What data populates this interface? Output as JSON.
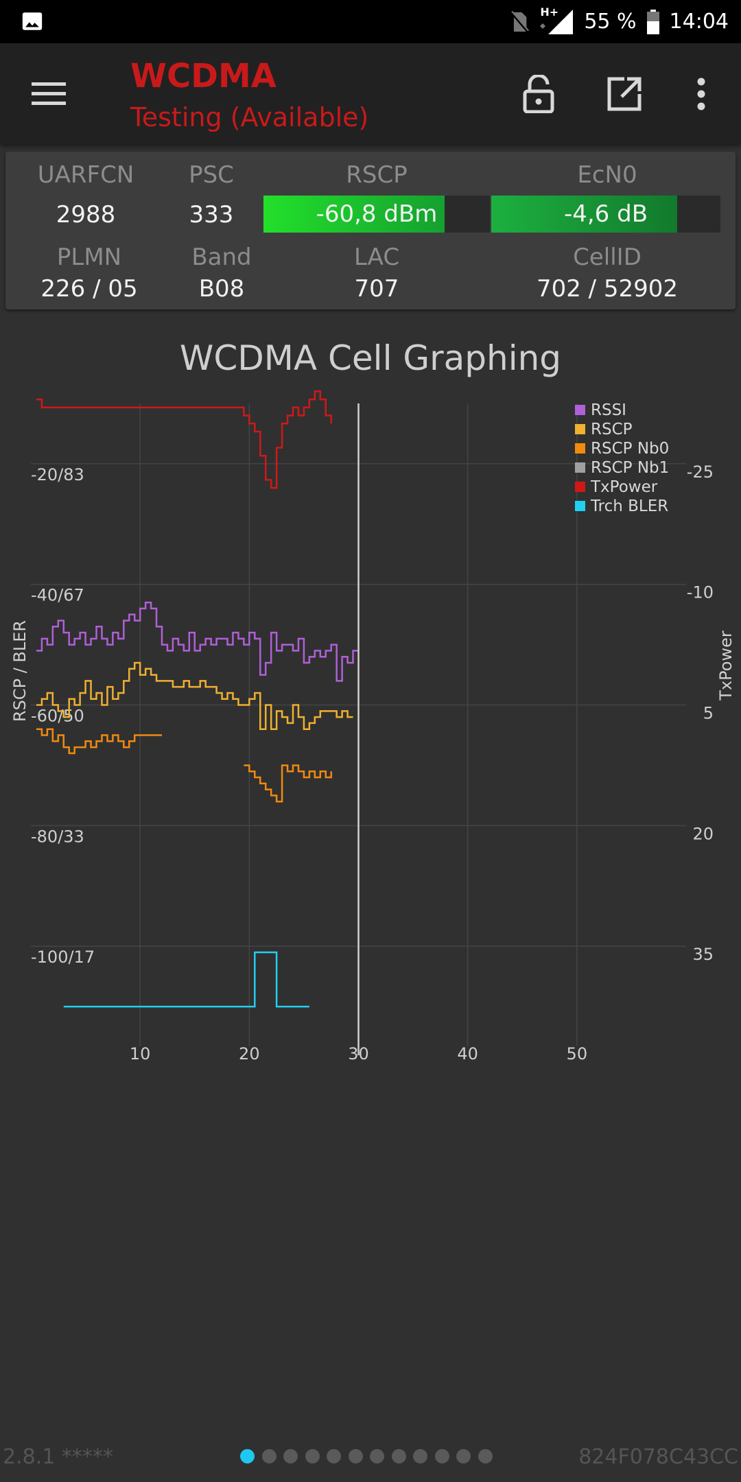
{
  "status_bar": {
    "network_label": "H+",
    "battery": "55 %",
    "time": "14:04",
    "icons": [
      "image-notification-icon",
      "no-sim-icon",
      "signal-icon",
      "battery-icon"
    ]
  },
  "app_bar": {
    "title": "WCDMA",
    "subtitle": "Testing (Available)",
    "title_color": "#c81a1a",
    "icons": [
      "menu-icon",
      "lock-open-icon",
      "open-external-icon",
      "more-vert-icon"
    ]
  },
  "info": {
    "uarfcn_label": "UARFCN",
    "uarfcn": "2988",
    "psc_label": "PSC",
    "psc": "333",
    "rscp_label": "RSCP",
    "rscp": "-60,8 dBm",
    "rscp_fill": 0.8,
    "ecn0_label": "EcN0",
    "ecn0": "-4,6 dB",
    "ecn0_fill": 0.81,
    "plmn_label": "PLMN",
    "plmn": "226 / 05",
    "band_label": "Band",
    "band": "B08",
    "lac_label": "LAC",
    "lac": "707",
    "cellid_label": "CellID",
    "cellid": "702 / 52902"
  },
  "chart_title": "WCDMA Cell Graphing",
  "chart_data": {
    "type": "line",
    "xlabel": "",
    "ylabel": "RSCP / BLER",
    "y2label": "TxPower",
    "xlim": [
      0,
      60
    ],
    "x_ticks": [
      "10",
      "20",
      "30",
      "40",
      "50"
    ],
    "ylim": [
      -120,
      -10
    ],
    "y_ticks": [
      "-20/83",
      "-40/67",
      "-60/50",
      "-80/33",
      "-100/17"
    ],
    "y_tick_values": [
      -20,
      -40,
      -60,
      -80,
      -100
    ],
    "y2_ticks": [
      "-25",
      "-10",
      "5",
      "20",
      "35"
    ],
    "y2_tick_values": [
      -25,
      -10,
      5,
      20,
      35
    ],
    "cursor_x": 30,
    "legend": [
      "RSSI",
      "RSCP",
      "RSCP Nb0",
      "RSCP Nb1",
      "TxPower",
      "Trch BLER"
    ],
    "legend_position": "top-right",
    "colors": {
      "RSSI": "#b060d8",
      "RSCP": "#f0b030",
      "RSCP Nb0": "#f08a10",
      "RSCP Nb1": "#a0a0a0",
      "TxPower": "#d01818",
      "Trch BLER": "#20d0f0"
    },
    "series": [
      {
        "name": "RSSI",
        "axis": "left",
        "x": [
          0.5,
          1,
          1.5,
          2,
          2.5,
          3,
          3.5,
          4,
          4.5,
          5,
          5.5,
          6,
          6.5,
          7,
          7.5,
          8,
          8.5,
          9,
          9.5,
          10,
          10.5,
          11,
          11.5,
          12,
          12.5,
          13,
          13.5,
          14,
          14.5,
          15,
          15.5,
          16,
          16.5,
          17,
          17.5,
          18,
          18.5,
          19,
          19.5,
          20,
          20.5,
          21,
          21.5,
          22,
          22.5,
          23,
          23.5,
          24,
          24.5,
          25,
          25.5,
          26,
          26.5,
          27,
          27.5,
          28,
          28.5,
          29,
          29.5,
          30
        ],
        "y": [
          -51,
          -49,
          -50,
          -47,
          -46,
          -48,
          -50,
          -49,
          -48,
          -50,
          -49,
          -47,
          -49,
          -50,
          -48,
          -49,
          -46,
          -45,
          -46,
          -44,
          -43,
          -44,
          -47,
          -50,
          -51,
          -49,
          -50,
          -51,
          -48,
          -51,
          -50,
          -49,
          -50,
          -49,
          -49,
          -50,
          -48,
          -49,
          -50,
          -48,
          -49,
          -55,
          -53,
          -48,
          -51,
          -50,
          -50,
          -51,
          -49,
          -53,
          -52,
          -51,
          -52,
          -51,
          -50,
          -56,
          -52,
          -53,
          -51,
          -51
        ]
      },
      {
        "name": "RSCP",
        "axis": "left",
        "x": [
          0.5,
          1,
          1.5,
          2,
          2.5,
          3,
          3.5,
          4,
          4.5,
          5,
          5.5,
          6,
          6.5,
          7,
          7.5,
          8,
          8.5,
          9,
          9.5,
          10,
          10.5,
          11,
          11.5,
          12,
          12.5,
          13,
          13.5,
          14,
          14.5,
          15,
          15.5,
          16,
          16.5,
          17,
          17.5,
          18,
          18.5,
          19,
          19.5,
          20,
          20.5,
          21,
          21.5,
          22,
          22.5,
          23,
          23.5,
          24,
          24.5,
          25,
          25.5,
          26,
          26.5,
          27,
          27.5,
          28,
          28.5,
          29,
          29.5
        ],
        "y": [
          -60,
          -59,
          -58,
          -60,
          -61,
          -62,
          -59,
          -60,
          -58,
          -56,
          -59,
          -58,
          -60,
          -57,
          -59,
          -58,
          -56,
          -54,
          -53,
          -55,
          -54,
          -55,
          -56,
          -56,
          -56,
          -57,
          -57,
          -56,
          -57,
          -57,
          -56,
          -57,
          -57,
          -58,
          -59,
          -58,
          -59,
          -60,
          -60,
          -59,
          -58,
          -64,
          -60,
          -64,
          -61,
          -62,
          -63,
          -60,
          -62,
          -64,
          -63,
          -62,
          -61,
          -61,
          -61,
          -62,
          -61,
          -62,
          -62
        ]
      },
      {
        "name": "RSCP Nb0",
        "axis": "left",
        "x": [
          0.5,
          1,
          1.5,
          2,
          2.5,
          3,
          3.5,
          4,
          4.5,
          5,
          5.5,
          6,
          6.5,
          7,
          7.5,
          8,
          8.5,
          9,
          9.5,
          10,
          10.5,
          11,
          11.5,
          12
        ],
        "y": [
          -64,
          -65,
          -64,
          -66,
          -65,
          -67,
          -68,
          -67,
          -67,
          -66,
          -67,
          -66,
          -65,
          -66,
          -65,
          -66,
          -67,
          -66,
          -65,
          -65,
          -65,
          -65,
          -65,
          -65
        ]
      },
      {
        "name": "RSCP Nb0 (segment 2)",
        "axis": "left",
        "x": [
          19.5,
          20,
          20.5,
          21,
          21.5,
          22,
          22.5,
          23,
          23.5,
          24,
          24.5,
          25,
          25.5,
          26,
          26.5,
          27,
          27.5
        ],
        "y": [
          -70,
          -71,
          -72,
          -73,
          -74,
          -75,
          -76,
          -70,
          -71,
          -70,
          -71,
          -72,
          -71,
          -72,
          -71,
          -72,
          -71
        ]
      },
      {
        "name": "TxPower",
        "axis": "right",
        "x": [
          0.5,
          1,
          1.5,
          19.5,
          20,
          20.5,
          21,
          21.5,
          22,
          22.5,
          23,
          23.5,
          24,
          24.5,
          25,
          25.5,
          26,
          26.5,
          27,
          27.5
        ],
        "y": [
          -33,
          -32,
          -32,
          -31,
          -30,
          -29,
          -26,
          -23,
          -22,
          -27,
          -30,
          -31,
          -32,
          -31,
          -32,
          -33,
          -34,
          -33,
          -31,
          -30
        ]
      },
      {
        "name": "Trch BLER",
        "axis": "left",
        "x": [
          3,
          10,
          19,
          20,
          20.5,
          21,
          21.5,
          22,
          22.5,
          23,
          25.5
        ],
        "y": [
          -110,
          -110,
          -110,
          -110,
          -101,
          -101,
          -101,
          -101,
          -110,
          -110,
          -110
        ]
      }
    ]
  },
  "footer": {
    "version": "2.8.1 *****",
    "device_id": "824F078C43CC",
    "page_count": 12,
    "active_page": 0,
    "active_color": "#1ec8f0"
  }
}
